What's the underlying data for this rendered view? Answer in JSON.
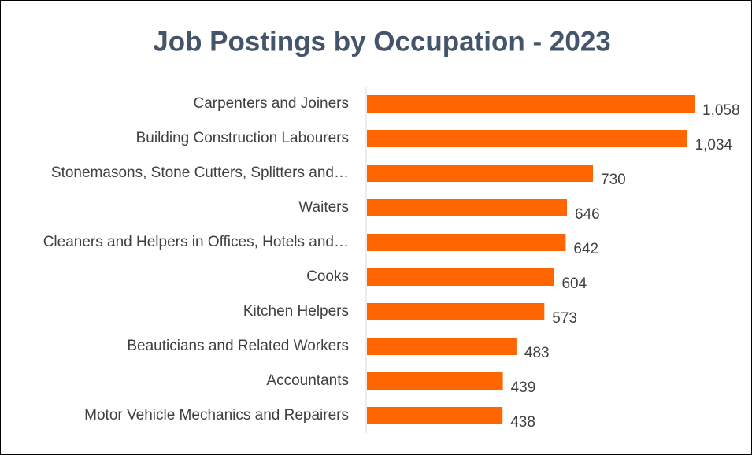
{
  "chart_data": {
    "type": "hbar",
    "title": "Job Postings by Occupation - 2023",
    "categories": [
      "Carpenters and Joiners",
      "Building Construction Labourers",
      "Stonemasons, Stone Cutters, Splitters and…",
      "Waiters",
      "Cleaners and Helpers in Offices, Hotels and…",
      "Cooks",
      "Kitchen Helpers",
      "Beauticians and Related Workers",
      "Accountants",
      "Motor Vehicle Mechanics and Repairers"
    ],
    "values": [
      1058,
      1034,
      730,
      646,
      642,
      604,
      573,
      483,
      439,
      438
    ],
    "value_labels": [
      "1,058",
      "1,034",
      "730",
      "646",
      "642",
      "604",
      "573",
      "483",
      "439",
      "438"
    ],
    "color": "#ff6600"
  }
}
